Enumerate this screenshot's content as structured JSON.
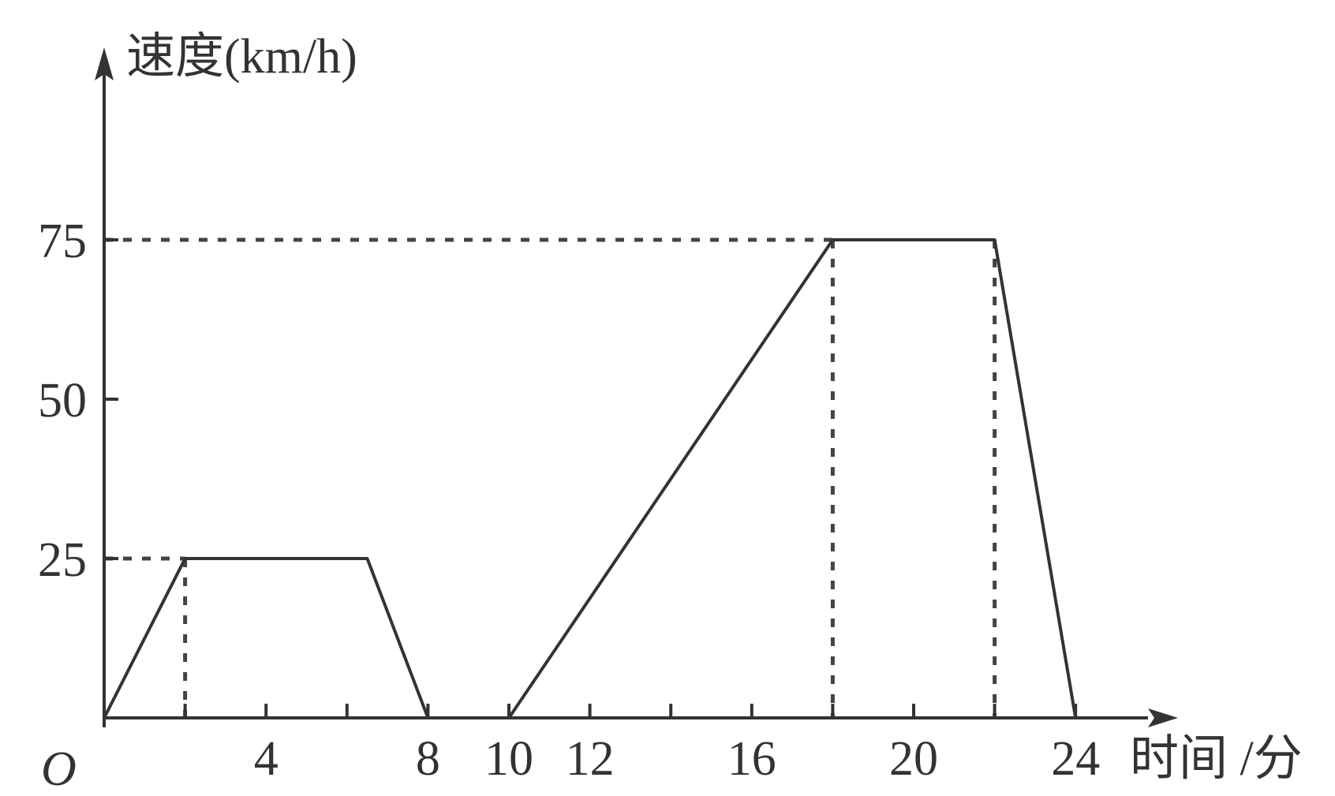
{
  "chart_data": {
    "type": "line",
    "ylabel": "速度(km/h)",
    "xlabel": "时间 /分",
    "origin_label": "O",
    "x_ticks": [
      4,
      8,
      10,
      12,
      16,
      20,
      24
    ],
    "x_tick_labels": [
      "4",
      "8",
      "10",
      "12",
      "16",
      "20",
      "24"
    ],
    "y_ticks": [
      25,
      50,
      75
    ],
    "y_tick_labels": [
      "25",
      "50",
      "75"
    ],
    "minor_x_ticks": [
      2,
      6,
      14,
      18,
      22
    ],
    "x": [
      0,
      2,
      6.5,
      8,
      10,
      18,
      22,
      24
    ],
    "y": [
      0,
      25,
      25,
      0,
      0,
      75,
      75,
      0
    ],
    "segments": [
      {
        "x": [
          0,
          2,
          6.5,
          8
        ],
        "y": [
          0,
          25,
          25,
          0
        ]
      },
      {
        "x": [
          10,
          18,
          22,
          24
        ],
        "y": [
          0,
          75,
          75,
          0
        ]
      }
    ],
    "reference_lines": [
      {
        "from": [
          0,
          25
        ],
        "to": [
          2,
          25
        ]
      },
      {
        "from": [
          2,
          25
        ],
        "to": [
          2,
          0
        ]
      },
      {
        "from": [
          0,
          75
        ],
        "to": [
          18,
          75
        ]
      },
      {
        "from": [
          18,
          75
        ],
        "to": [
          18,
          0
        ]
      },
      {
        "from": [
          22,
          75
        ],
        "to": [
          22,
          0
        ]
      }
    ],
    "xlim": [
      0,
      26
    ],
    "ylim": [
      0,
      100
    ],
    "grid": false
  }
}
